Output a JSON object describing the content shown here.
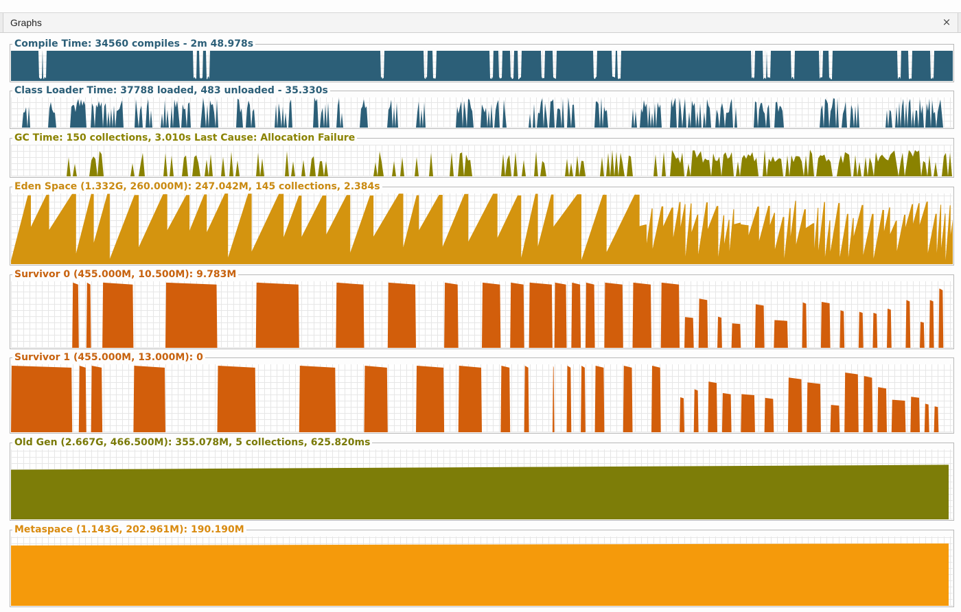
{
  "tab": {
    "label": "Graphs",
    "close_glyph": "×"
  },
  "graphs": [
    {
      "id": "compile",
      "title": "Compile Time: 34560 compiles - 2m 48.978s",
      "color": "#2c5f78",
      "title_color": "#2c5f78",
      "pattern": "busy-gaps",
      "gaps": [
        0.031,
        0.036,
        0.195,
        0.202,
        0.209,
        0.394,
        0.44,
        0.45,
        0.51,
        0.52,
        0.532,
        0.54,
        0.565,
        0.577,
        0.62,
        0.64,
        0.646,
        0.788,
        0.8,
        0.805,
        0.83,
        0.86,
        0.87,
        0.943,
        0.955,
        0.978
      ]
    },
    {
      "id": "classloader",
      "title": "Class Loader Time: 37788 loaded, 483 unloaded - 35.330s",
      "color": "#2c5f78",
      "title_color": "#2c5f78",
      "pattern": "spikes",
      "bursts": [
        [
          0.01,
          0.02
        ],
        [
          0.04,
          0.05
        ],
        [
          0.06,
          0.08
        ],
        [
          0.085,
          0.1
        ],
        [
          0.1,
          0.12
        ],
        [
          0.13,
          0.15
        ],
        [
          0.16,
          0.19
        ],
        [
          0.2,
          0.22
        ],
        [
          0.24,
          0.26
        ],
        [
          0.28,
          0.3
        ],
        [
          0.32,
          0.35
        ],
        [
          0.34,
          0.36
        ],
        [
          0.37,
          0.38
        ],
        [
          0.4,
          0.41
        ],
        [
          0.43,
          0.44
        ],
        [
          0.47,
          0.49
        ],
        [
          0.5,
          0.53
        ],
        [
          0.55,
          0.57
        ],
        [
          0.57,
          0.6
        ],
        [
          0.62,
          0.64
        ],
        [
          0.66,
          0.69
        ],
        [
          0.7,
          0.73
        ],
        [
          0.72,
          0.77
        ],
        [
          0.79,
          0.82
        ],
        [
          0.86,
          0.9
        ],
        [
          0.93,
          0.98
        ],
        [
          0.95,
          0.99
        ]
      ]
    },
    {
      "id": "gc",
      "title": "GC Time: 150 collections, 3.010s  Last Cause: Allocation Failure",
      "color": "#8a8200",
      "title_color": "#8a8200",
      "pattern": "gc-spikes"
    },
    {
      "id": "eden",
      "title": "Eden Space (1.332G, 260.000M): 247.042M, 145 collections, 2.384s",
      "color": "#d4940f",
      "title_color": "#c98a12",
      "pattern": "sawtooth"
    },
    {
      "id": "survivor0",
      "title": "Survivor 0 (455.000M, 10.500M): 9.783M",
      "color": "#d25e0b",
      "title_color": "#c7620e",
      "pattern": "blocks",
      "blocks": [
        [
          0.065,
          0.072
        ],
        [
          0.08,
          0.085
        ],
        [
          0.097,
          0.13
        ],
        [
          0.164,
          0.219
        ],
        [
          0.26,
          0.306
        ],
        [
          0.345,
          0.375
        ],
        [
          0.4,
          0.43
        ],
        [
          0.46,
          0.475
        ],
        [
          0.5,
          0.52
        ],
        [
          0.53,
          0.545
        ],
        [
          0.55,
          0.575
        ],
        [
          0.577,
          0.59
        ],
        [
          0.595,
          0.605
        ],
        [
          0.61,
          0.62
        ],
        [
          0.63,
          0.65
        ],
        [
          0.66,
          0.68
        ],
        [
          0.69,
          0.71
        ],
        [
          0.715,
          0.725
        ],
        [
          0.73,
          0.74
        ],
        [
          0.75,
          0.755
        ],
        [
          0.765,
          0.775
        ],
        [
          0.79,
          0.8
        ],
        [
          0.81,
          0.825
        ],
        [
          0.84,
          0.845
        ],
        [
          0.86,
          0.87
        ],
        [
          0.88,
          0.885
        ],
        [
          0.9,
          0.905
        ],
        [
          0.915,
          0.92
        ],
        [
          0.93,
          0.935
        ],
        [
          0.95,
          0.955
        ],
        [
          0.965,
          0.97
        ],
        [
          0.975,
          0.98
        ],
        [
          0.985,
          0.99
        ]
      ]
    },
    {
      "id": "survivor1",
      "title": "Survivor 1 (455.000M, 13.000M): 0",
      "color": "#d25e0b",
      "title_color": "#c7620e",
      "pattern": "blocks",
      "blocks": [
        [
          0.0,
          0.065
        ],
        [
          0.072,
          0.08
        ],
        [
          0.085,
          0.097
        ],
        [
          0.13,
          0.164
        ],
        [
          0.219,
          0.26
        ],
        [
          0.306,
          0.345
        ],
        [
          0.375,
          0.4
        ],
        [
          0.43,
          0.46
        ],
        [
          0.475,
          0.5
        ],
        [
          0.52,
          0.53
        ],
        [
          0.545,
          0.55
        ],
        [
          0.575,
          0.577
        ],
        [
          0.59,
          0.595
        ],
        [
          0.605,
          0.61
        ],
        [
          0.62,
          0.63
        ],
        [
          0.65,
          0.66
        ],
        [
          0.68,
          0.69
        ],
        [
          0.71,
          0.715
        ],
        [
          0.725,
          0.73
        ],
        [
          0.74,
          0.75
        ],
        [
          0.755,
          0.765
        ],
        [
          0.775,
          0.79
        ],
        [
          0.8,
          0.81
        ],
        [
          0.825,
          0.84
        ],
        [
          0.845,
          0.86
        ],
        [
          0.87,
          0.88
        ],
        [
          0.885,
          0.9
        ],
        [
          0.905,
          0.915
        ],
        [
          0.92,
          0.93
        ],
        [
          0.935,
          0.95
        ],
        [
          0.955,
          0.965
        ],
        [
          0.97,
          0.975
        ],
        [
          0.98,
          0.985
        ]
      ]
    },
    {
      "id": "oldgen",
      "title": "Old Gen (2.667G, 466.500M): 355.078M, 5 collections, 625.820ms",
      "color": "#7d7d08",
      "title_color": "#7a7a08",
      "pattern": "ramp",
      "start": 0.71,
      "end": 0.78
    },
    {
      "id": "metaspace",
      "title": "Metaspace (1.143G, 202.961M): 190.190M",
      "color": "#f59a0b",
      "title_color": "#d98b10",
      "pattern": "ramp",
      "start": 0.87,
      "end": 0.9
    }
  ]
}
